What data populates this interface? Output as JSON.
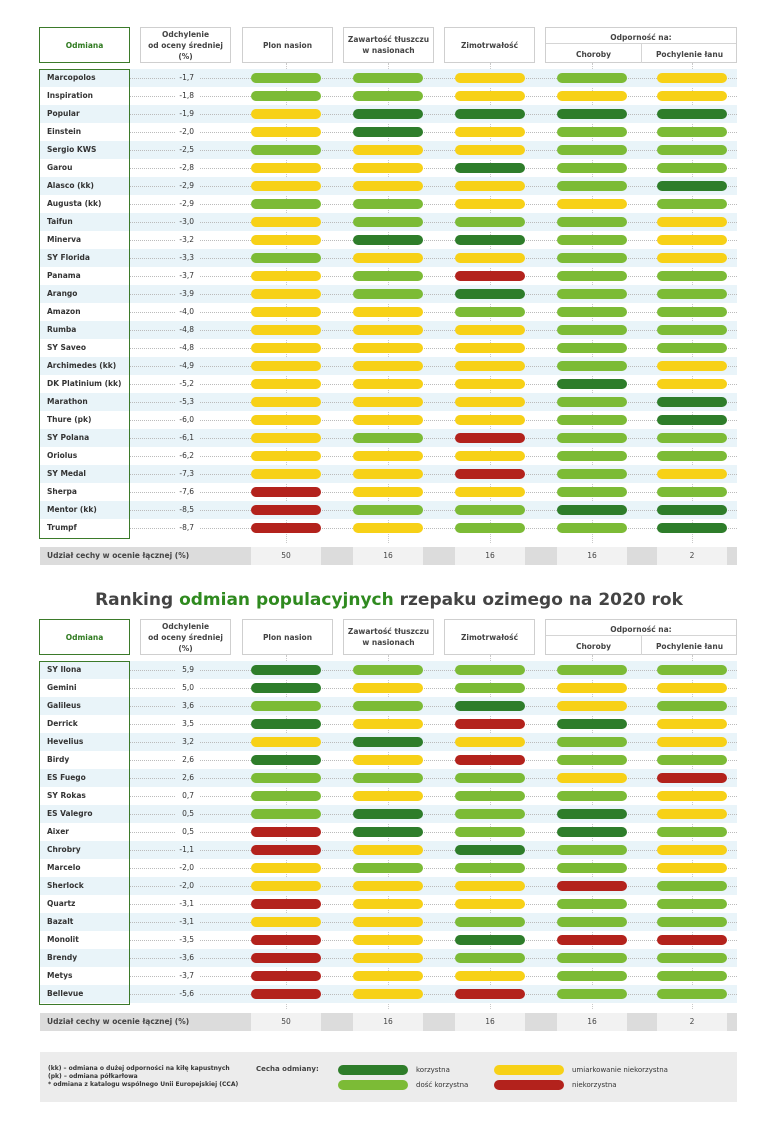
{
  "colors": {
    "dark_green": "#2e7d2a",
    "light_green": "#7cbb36",
    "yellow": "#f7d117",
    "red": "#b3221c"
  },
  "headers": {
    "variety": "Odmiana",
    "deviation_line1": "Odchylenie",
    "deviation_line2": "od oceny średniej (%)",
    "yield": "Plon nasion",
    "fat_line1": "Zawartość tłuszczu",
    "fat_line2": "w nasionach",
    "winter": "Zimotrwałość",
    "resistance": "Odporność na:",
    "disease": "Choroby",
    "lodging": "Pochylenie łanu"
  },
  "share_label": "Udział cechy w ocenie łącznej (%)",
  "shares": [
    "50",
    "16",
    "16",
    "16",
    "2"
  ],
  "title": {
    "part1": "Ranking ",
    "highlight": "odmian populacyjnych",
    "part2": " rzepaku ozimego na 2020 rok"
  },
  "chart_data": [
    {
      "type": "table",
      "columns": [
        "Plon nasion",
        "Zawartość tłuszczu w nasionach",
        "Zimotrwałość",
        "Choroby",
        "Pochylenie łanu"
      ],
      "rating_scale": {
        "DG": "korzystna",
        "LG": "dość korzystna",
        "Y": "umiarkowanie niekorzystna",
        "R": "niekorzystna"
      },
      "rows": [
        {
          "name": "Marcopolos",
          "deviation": "-1,7",
          "ratings": [
            "LG",
            "LG",
            "Y",
            "LG",
            "Y"
          ]
        },
        {
          "name": "Inspiration",
          "deviation": "-1,8",
          "ratings": [
            "LG",
            "LG",
            "Y",
            "Y",
            "Y"
          ]
        },
        {
          "name": "Popular",
          "deviation": "-1,9",
          "ratings": [
            "Y",
            "DG",
            "DG",
            "DG",
            "DG"
          ]
        },
        {
          "name": "Einstein",
          "deviation": "-2,0",
          "ratings": [
            "Y",
            "DG",
            "Y",
            "LG",
            "LG"
          ]
        },
        {
          "name": "Sergio KWS",
          "deviation": "-2,5",
          "ratings": [
            "LG",
            "Y",
            "Y",
            "LG",
            "LG"
          ]
        },
        {
          "name": "Garou",
          "deviation": "-2,8",
          "ratings": [
            "Y",
            "Y",
            "DG",
            "LG",
            "LG"
          ]
        },
        {
          "name": "Alasco (kk)",
          "deviation": "-2,9",
          "ratings": [
            "Y",
            "Y",
            "Y",
            "LG",
            "DG"
          ]
        },
        {
          "name": "Augusta (kk)",
          "deviation": "-2,9",
          "ratings": [
            "LG",
            "LG",
            "Y",
            "Y",
            "LG"
          ]
        },
        {
          "name": "Taifun",
          "deviation": "-3,0",
          "ratings": [
            "Y",
            "LG",
            "LG",
            "LG",
            "Y"
          ]
        },
        {
          "name": "Minerva",
          "deviation": "-3,2",
          "ratings": [
            "Y",
            "DG",
            "DG",
            "LG",
            "Y"
          ]
        },
        {
          "name": "SY Florida",
          "deviation": "-3,3",
          "ratings": [
            "LG",
            "Y",
            "Y",
            "LG",
            "Y"
          ]
        },
        {
          "name": "Panama",
          "deviation": "-3,7",
          "ratings": [
            "Y",
            "LG",
            "R",
            "LG",
            "LG"
          ]
        },
        {
          "name": "Arango",
          "deviation": "-3,9",
          "ratings": [
            "Y",
            "LG",
            "DG",
            "LG",
            "LG"
          ]
        },
        {
          "name": "Amazon",
          "deviation": "-4,0",
          "ratings": [
            "Y",
            "Y",
            "LG",
            "LG",
            "LG"
          ]
        },
        {
          "name": "Rumba",
          "deviation": "-4,8",
          "ratings": [
            "Y",
            "Y",
            "Y",
            "LG",
            "LG"
          ]
        },
        {
          "name": "SY Saveo",
          "deviation": "-4,8",
          "ratings": [
            "Y",
            "Y",
            "Y",
            "LG",
            "LG"
          ]
        },
        {
          "name": "Archimedes (kk)",
          "deviation": "-4,9",
          "ratings": [
            "Y",
            "Y",
            "Y",
            "LG",
            "Y"
          ]
        },
        {
          "name": "DK Platinium (kk)",
          "deviation": "-5,2",
          "ratings": [
            "Y",
            "Y",
            "Y",
            "DG",
            "Y"
          ]
        },
        {
          "name": "Marathon",
          "deviation": "-5,3",
          "ratings": [
            "Y",
            "Y",
            "Y",
            "LG",
            "DG"
          ]
        },
        {
          "name": "Thure (pk)",
          "deviation": "-6,0",
          "ratings": [
            "Y",
            "Y",
            "Y",
            "LG",
            "DG"
          ]
        },
        {
          "name": "SY Polana",
          "deviation": "-6,1",
          "ratings": [
            "Y",
            "LG",
            "R",
            "LG",
            "LG"
          ]
        },
        {
          "name": "Oriolus",
          "deviation": "-6,2",
          "ratings": [
            "Y",
            "Y",
            "Y",
            "LG",
            "LG"
          ]
        },
        {
          "name": "SY Medal",
          "deviation": "-7,3",
          "ratings": [
            "Y",
            "Y",
            "R",
            "LG",
            "Y"
          ]
        },
        {
          "name": "Sherpa",
          "deviation": "-7,6",
          "ratings": [
            "R",
            "Y",
            "Y",
            "LG",
            "LG"
          ]
        },
        {
          "name": "Mentor (kk)",
          "deviation": "-8,5",
          "ratings": [
            "R",
            "LG",
            "LG",
            "DG",
            "DG"
          ]
        },
        {
          "name": "Trumpf",
          "deviation": "-8,7",
          "ratings": [
            "R",
            "Y",
            "LG",
            "LG",
            "DG"
          ]
        }
      ]
    },
    {
      "type": "table",
      "columns": [
        "Plon nasion",
        "Zawartość tłuszczu w nasionach",
        "Zimotrwałość",
        "Choroby",
        "Pochylenie łanu"
      ],
      "rating_scale": {
        "DG": "korzystna",
        "LG": "dość korzystna",
        "Y": "umiarkowanie niekorzystna",
        "R": "niekorzystna"
      },
      "rows": [
        {
          "name": "SY Ilona",
          "deviation": "5,9",
          "ratings": [
            "DG",
            "LG",
            "LG",
            "LG",
            "LG"
          ]
        },
        {
          "name": "Gemini",
          "deviation": "5,0",
          "ratings": [
            "DG",
            "Y",
            "LG",
            "Y",
            "Y"
          ]
        },
        {
          "name": "Galileus",
          "deviation": "3,6",
          "ratings": [
            "LG",
            "LG",
            "DG",
            "Y",
            "LG"
          ]
        },
        {
          "name": "Derrick",
          "deviation": "3,5",
          "ratings": [
            "DG",
            "Y",
            "R",
            "DG",
            "Y"
          ]
        },
        {
          "name": "Hevelius",
          "deviation": "3,2",
          "ratings": [
            "Y",
            "DG",
            "Y",
            "LG",
            "Y"
          ]
        },
        {
          "name": "Birdy",
          "deviation": "2,6",
          "ratings": [
            "DG",
            "Y",
            "R",
            "LG",
            "LG"
          ]
        },
        {
          "name": "ES Fuego",
          "deviation": "2,6",
          "ratings": [
            "LG",
            "LG",
            "LG",
            "Y",
            "R"
          ]
        },
        {
          "name": "SY Rokas",
          "deviation": "0,7",
          "ratings": [
            "LG",
            "Y",
            "LG",
            "LG",
            "Y"
          ]
        },
        {
          "name": "ES Valegro",
          "deviation": "0,5",
          "ratings": [
            "LG",
            "DG",
            "LG",
            "DG",
            "Y"
          ]
        },
        {
          "name": "Aixer",
          "deviation": "0,5",
          "ratings": [
            "R",
            "DG",
            "LG",
            "DG",
            "LG"
          ]
        },
        {
          "name": "Chrobry",
          "deviation": "-1,1",
          "ratings": [
            "R",
            "Y",
            "DG",
            "LG",
            "Y"
          ]
        },
        {
          "name": "Marcelo",
          "deviation": "-2,0",
          "ratings": [
            "Y",
            "LG",
            "LG",
            "LG",
            "Y"
          ]
        },
        {
          "name": "Sherlock",
          "deviation": "-2,0",
          "ratings": [
            "Y",
            "Y",
            "Y",
            "R",
            "LG"
          ]
        },
        {
          "name": "Quartz",
          "deviation": "-3,1",
          "ratings": [
            "R",
            "Y",
            "Y",
            "LG",
            "LG"
          ]
        },
        {
          "name": "Bazalt",
          "deviation": "-3,1",
          "ratings": [
            "Y",
            "Y",
            "LG",
            "LG",
            "LG"
          ]
        },
        {
          "name": "Monolit",
          "deviation": "-3,5",
          "ratings": [
            "R",
            "Y",
            "DG",
            "R",
            "R"
          ]
        },
        {
          "name": "Brendy",
          "deviation": "-3,6",
          "ratings": [
            "R",
            "Y",
            "LG",
            "LG",
            "LG"
          ]
        },
        {
          "name": "Metys",
          "deviation": "-3,7",
          "ratings": [
            "R",
            "Y",
            "Y",
            "LG",
            "LG"
          ]
        },
        {
          "name": "Bellevue",
          "deviation": "-5,6",
          "ratings": [
            "R",
            "Y",
            "R",
            "LG",
            "LG"
          ]
        }
      ]
    }
  ],
  "legend": {
    "notes": [
      "(kk) – odmiana o dużej odporności na kiłę kapustnych",
      "(pk) – odmiana półkarłowa",
      "* odmiana z katalogu wspólnego Unii Europejskiej (CCA)"
    ],
    "caption": "Cecha odmiany:",
    "items": [
      {
        "code": "DG",
        "label": "korzystna"
      },
      {
        "code": "LG",
        "label": "dość korzystna"
      },
      {
        "code": "Y",
        "label": "umiarkowanie niekorzystna"
      },
      {
        "code": "R",
        "label": "niekorzystna"
      }
    ]
  }
}
